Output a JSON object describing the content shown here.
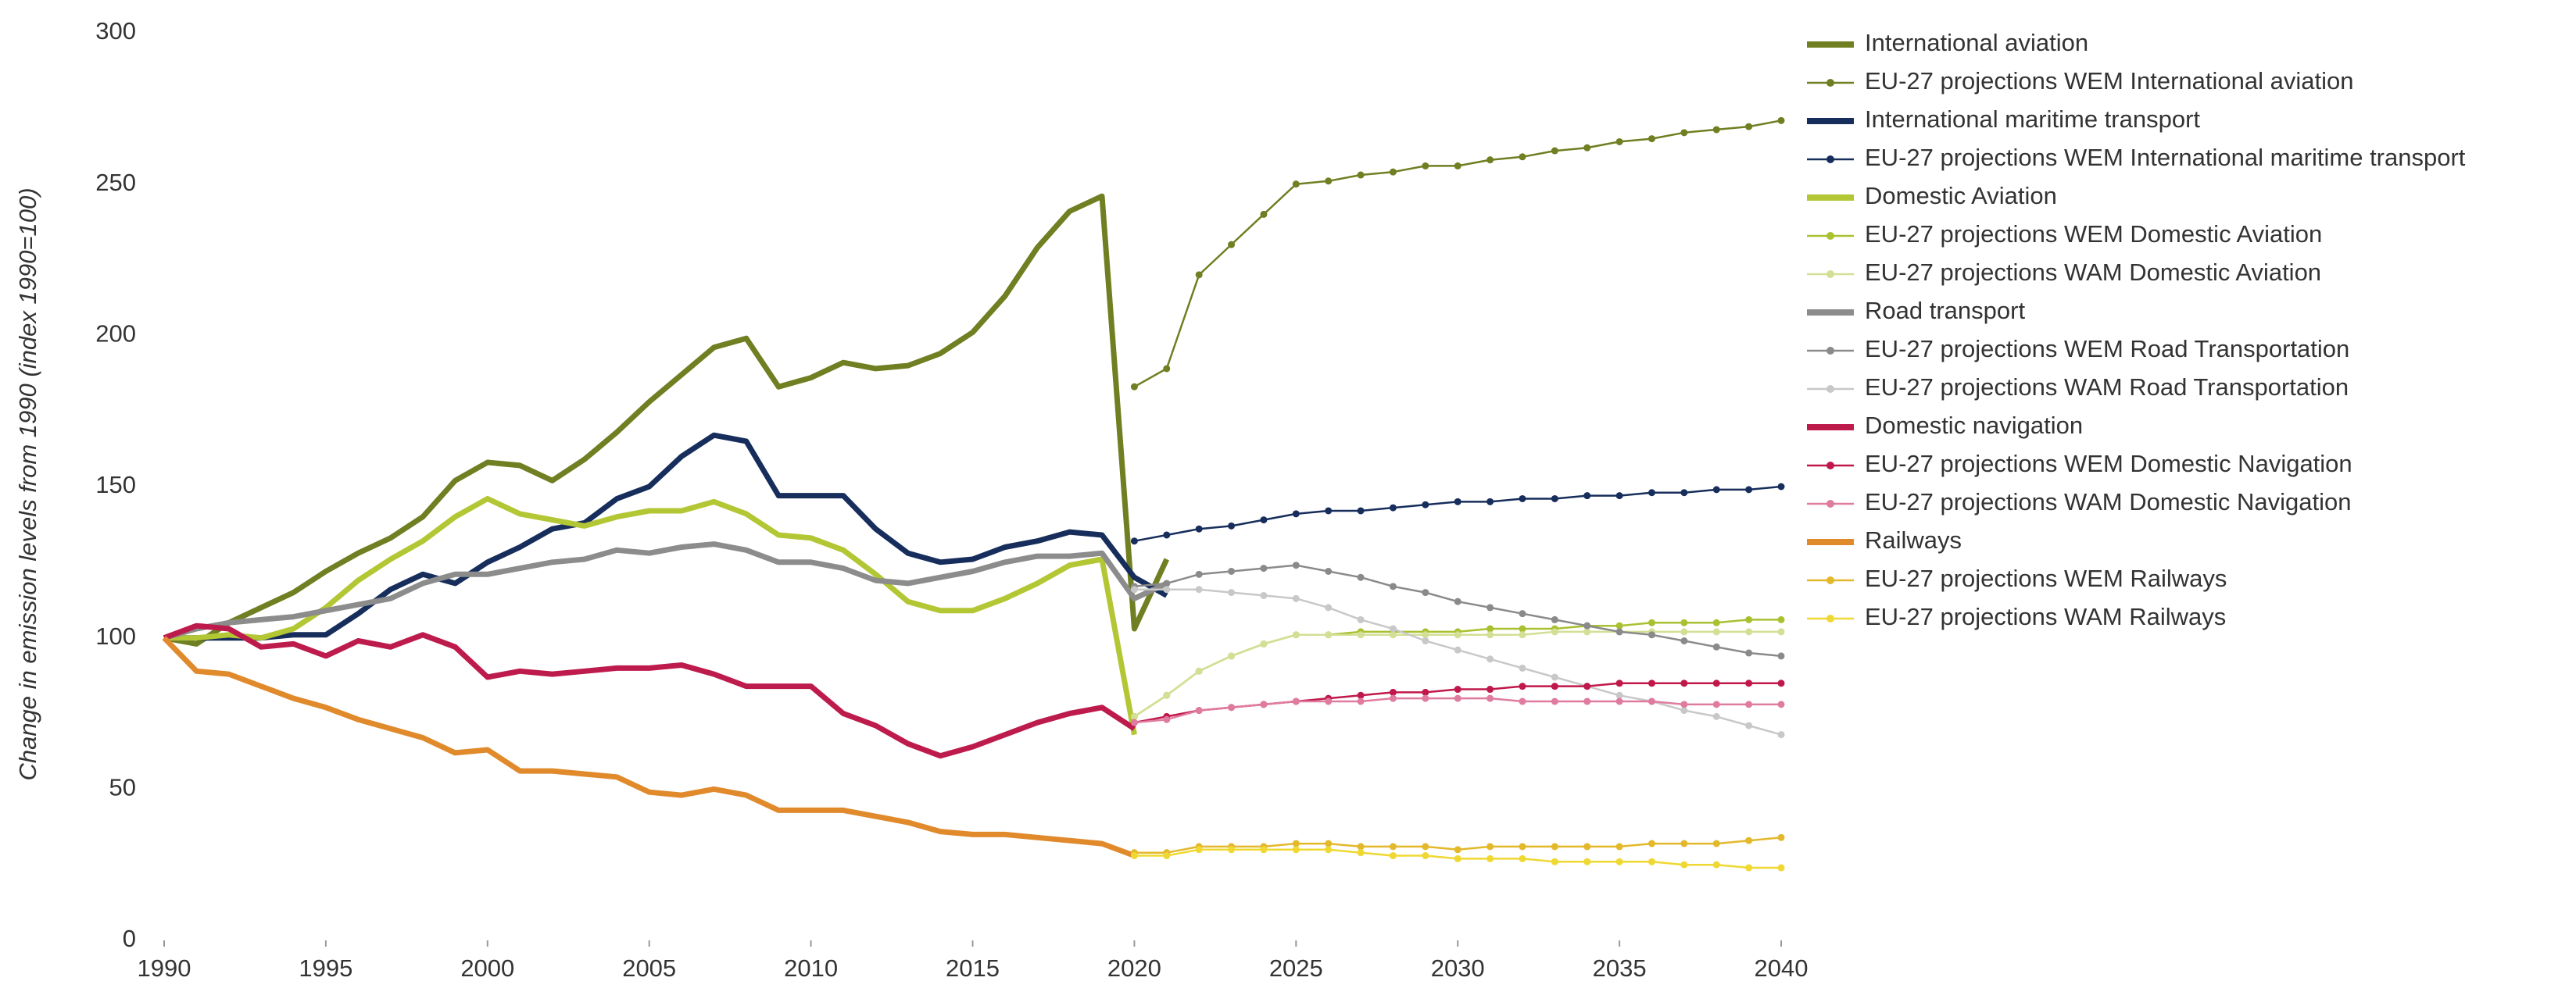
{
  "chart_data": {
    "type": "line",
    "y_label": "Change in emission levels from 1990 (index 1990=100)",
    "x": [
      1990,
      1991,
      1992,
      1993,
      1994,
      1995,
      1996,
      1997,
      1998,
      1999,
      2000,
      2001,
      2002,
      2003,
      2004,
      2005,
      2006,
      2007,
      2008,
      2009,
      2010,
      2011,
      2012,
      2013,
      2014,
      2015,
      2016,
      2017,
      2018,
      2019,
      2020,
      2021,
      2022,
      2023,
      2024,
      2025,
      2026,
      2027,
      2028,
      2029,
      2030,
      2031,
      2032,
      2033,
      2034,
      2035,
      2036,
      2037,
      2038,
      2039,
      2040
    ],
    "xlim": [
      1990,
      2040
    ],
    "xticks": [
      1990,
      1995,
      2000,
      2005,
      2010,
      2015,
      2020,
      2025,
      2030,
      2035,
      2040
    ],
    "ylim": [
      0,
      300
    ],
    "yticks": [
      0,
      50,
      100,
      150,
      200,
      250,
      300
    ],
    "grid": false,
    "legend": "right",
    "series": [
      {
        "name": "International aviation",
        "color": "#6f7f22",
        "style": "thick",
        "values": [
          100,
          98,
          105,
          110,
          115,
          122,
          128,
          133,
          140,
          152,
          158,
          157,
          152,
          159,
          168,
          178,
          187,
          196,
          199,
          183,
          186,
          191,
          189,
          190,
          194,
          201,
          213,
          229,
          241,
          246,
          103,
          126,
          null,
          null,
          null,
          null,
          null,
          null,
          null,
          null,
          null,
          null,
          null,
          null,
          null,
          null,
          null,
          null,
          null,
          null,
          null
        ]
      },
      {
        "name": "EU-27 projections WEM International aviation",
        "color": "#6f7f22",
        "style": "marker",
        "values": [
          null,
          null,
          null,
          null,
          null,
          null,
          null,
          null,
          null,
          null,
          null,
          null,
          null,
          null,
          null,
          null,
          null,
          null,
          null,
          null,
          null,
          null,
          null,
          null,
          null,
          null,
          null,
          null,
          null,
          null,
          183,
          189,
          220,
          230,
          240,
          250,
          251,
          253,
          254,
          256,
          256,
          258,
          259,
          261,
          262,
          264,
          265,
          267,
          268,
          269,
          271
        ]
      },
      {
        "name": "International maritime transport",
        "color": "#172e5c",
        "style": "thick",
        "values": [
          100,
          100,
          100,
          100,
          101,
          101,
          108,
          116,
          121,
          118,
          125,
          130,
          136,
          138,
          146,
          150,
          160,
          167,
          165,
          147,
          147,
          147,
          136,
          128,
          125,
          126,
          130,
          132,
          135,
          134,
          120,
          114,
          null,
          null,
          null,
          null,
          null,
          null,
          null,
          null,
          null,
          null,
          null,
          null,
          null,
          null,
          null,
          null,
          null,
          null,
          null
        ]
      },
      {
        "name": "EU-27 projections WEM International maritime transport",
        "color": "#172e5c",
        "style": "marker",
        "values": [
          null,
          null,
          null,
          null,
          null,
          null,
          null,
          null,
          null,
          null,
          null,
          null,
          null,
          null,
          null,
          null,
          null,
          null,
          null,
          null,
          null,
          null,
          null,
          null,
          null,
          null,
          null,
          null,
          null,
          null,
          132,
          134,
          136,
          137,
          139,
          141,
          142,
          142,
          143,
          144,
          145,
          145,
          146,
          146,
          147,
          147,
          148,
          148,
          149,
          149,
          150
        ]
      },
      {
        "name": "Domestic Aviation",
        "color": "#b3c633",
        "style": "thick",
        "values": [
          100,
          100,
          101,
          100,
          103,
          110,
          119,
          126,
          132,
          140,
          146,
          141,
          139,
          137,
          140,
          142,
          142,
          145,
          141,
          134,
          133,
          129,
          121,
          112,
          109,
          109,
          113,
          118,
          124,
          126,
          68,
          null,
          null,
          null,
          null,
          null,
          null,
          null,
          null,
          null,
          null,
          null,
          null,
          null,
          null,
          null,
          null,
          null,
          null,
          null,
          null
        ]
      },
      {
        "name": "EU-27 projections WEM Domestic Aviation",
        "color": "#a9c130",
        "style": "marker",
        "values": [
          null,
          null,
          null,
          null,
          null,
          null,
          null,
          null,
          null,
          null,
          null,
          null,
          null,
          null,
          null,
          null,
          null,
          null,
          null,
          null,
          null,
          null,
          null,
          null,
          null,
          null,
          null,
          null,
          null,
          null,
          74,
          81,
          89,
          94,
          98,
          101,
          101,
          102,
          102,
          102,
          102,
          103,
          103,
          103,
          104,
          104,
          105,
          105,
          105,
          106,
          106
        ]
      },
      {
        "name": "EU-27 projections WAM Domestic Aviation",
        "color": "#d3df95",
        "style": "marker",
        "values": [
          null,
          null,
          null,
          null,
          null,
          null,
          null,
          null,
          null,
          null,
          null,
          null,
          null,
          null,
          null,
          null,
          null,
          null,
          null,
          null,
          null,
          null,
          null,
          null,
          null,
          null,
          null,
          null,
          null,
          null,
          74,
          81,
          89,
          94,
          98,
          101,
          101,
          101,
          101,
          101,
          101,
          101,
          101,
          102,
          102,
          102,
          102,
          102,
          102,
          102,
          102
        ]
      },
      {
        "name": "Road transport",
        "color": "#8c8c8c",
        "style": "thick",
        "values": [
          100,
          103,
          105,
          106,
          107,
          109,
          111,
          113,
          118,
          121,
          121,
          123,
          125,
          126,
          129,
          128,
          130,
          131,
          129,
          125,
          125,
          123,
          119,
          118,
          120,
          122,
          125,
          127,
          127,
          128,
          113,
          118,
          null,
          null,
          null,
          null,
          null,
          null,
          null,
          null,
          null,
          null,
          null,
          null,
          null,
          null,
          null,
          null,
          null,
          null,
          null
        ]
      },
      {
        "name": "EU-27 projections WEM Road Transportation",
        "color": "#8a8a8a",
        "style": "marker",
        "values": [
          null,
          null,
          null,
          null,
          null,
          null,
          null,
          null,
          null,
          null,
          null,
          null,
          null,
          null,
          null,
          null,
          null,
          null,
          null,
          null,
          null,
          null,
          null,
          null,
          null,
          null,
          null,
          null,
          null,
          null,
          117,
          118,
          121,
          122,
          123,
          124,
          122,
          120,
          117,
          115,
          112,
          110,
          108,
          106,
          104,
          102,
          101,
          99,
          97,
          95,
          94
        ]
      },
      {
        "name": "EU-27 projections WAM Road Transportation",
        "color": "#c8c8c8",
        "style": "marker",
        "values": [
          null,
          null,
          null,
          null,
          null,
          null,
          null,
          null,
          null,
          null,
          null,
          null,
          null,
          null,
          null,
          null,
          null,
          null,
          null,
          null,
          null,
          null,
          null,
          null,
          null,
          null,
          null,
          null,
          null,
          null,
          116,
          116,
          116,
          115,
          114,
          113,
          110,
          106,
          103,
          99,
          96,
          93,
          90,
          87,
          84,
          81,
          79,
          76,
          74,
          71,
          68
        ]
      },
      {
        "name": "Domestic navigation",
        "color": "#be1b4d",
        "style": "thick",
        "values": [
          100,
          104,
          103,
          97,
          98,
          94,
          99,
          97,
          101,
          97,
          87,
          89,
          88,
          89,
          90,
          90,
          91,
          88,
          84,
          84,
          84,
          75,
          71,
          65,
          61,
          64,
          68,
          72,
          75,
          77,
          70,
          null,
          null,
          null,
          null,
          null,
          null,
          null,
          null,
          null,
          null,
          null,
          null,
          null,
          null,
          null,
          null,
          null,
          null,
          null,
          null
        ]
      },
      {
        "name": "EU-27 projections WEM Domestic Navigation",
        "color": "#c0184a",
        "style": "marker",
        "values": [
          null,
          null,
          null,
          null,
          null,
          null,
          null,
          null,
          null,
          null,
          null,
          null,
          null,
          null,
          null,
          null,
          null,
          null,
          null,
          null,
          null,
          null,
          null,
          null,
          null,
          null,
          null,
          null,
          null,
          null,
          72,
          74,
          76,
          77,
          78,
          79,
          80,
          81,
          82,
          82,
          83,
          83,
          84,
          84,
          84,
          85,
          85,
          85,
          85,
          85,
          85
        ]
      },
      {
        "name": "EU-27 projections WAM Domestic Navigation",
        "color": "#e07ba0",
        "style": "marker",
        "values": [
          null,
          null,
          null,
          null,
          null,
          null,
          null,
          null,
          null,
          null,
          null,
          null,
          null,
          null,
          null,
          null,
          null,
          null,
          null,
          null,
          null,
          null,
          null,
          null,
          null,
          null,
          null,
          null,
          null,
          null,
          72,
          73,
          76,
          77,
          78,
          79,
          79,
          79,
          80,
          80,
          80,
          80,
          79,
          79,
          79,
          79,
          79,
          78,
          78,
          78,
          78
        ]
      },
      {
        "name": "Railways",
        "color": "#e08a2c",
        "style": "thick",
        "values": [
          100,
          89,
          88,
          84,
          80,
          77,
          73,
          70,
          67,
          62,
          63,
          56,
          56,
          55,
          54,
          49,
          48,
          50,
          48,
          43,
          43,
          43,
          41,
          39,
          36,
          35,
          35,
          34,
          33,
          32,
          28,
          null,
          null,
          null,
          null,
          null,
          null,
          null,
          null,
          null,
          null,
          null,
          null,
          null,
          null,
          null,
          null,
          null,
          null,
          null,
          null
        ]
      },
      {
        "name": "EU-27 projections WEM Railways",
        "color": "#e3b82b",
        "style": "marker",
        "values": [
          null,
          null,
          null,
          null,
          null,
          null,
          null,
          null,
          null,
          null,
          null,
          null,
          null,
          null,
          null,
          null,
          null,
          null,
          null,
          null,
          null,
          null,
          null,
          null,
          null,
          null,
          null,
          null,
          null,
          null,
          29,
          29,
          31,
          31,
          31,
          32,
          32,
          31,
          31,
          31,
          30,
          31,
          31,
          31,
          31,
          31,
          32,
          32,
          32,
          33,
          34
        ]
      },
      {
        "name": "EU-27 projections WAM Railways",
        "color": "#f0d832",
        "style": "marker",
        "values": [
          null,
          null,
          null,
          null,
          null,
          null,
          null,
          null,
          null,
          null,
          null,
          null,
          null,
          null,
          null,
          null,
          null,
          null,
          null,
          null,
          null,
          null,
          null,
          null,
          null,
          null,
          null,
          null,
          null,
          null,
          28,
          28,
          30,
          30,
          30,
          30,
          30,
          29,
          28,
          28,
          27,
          27,
          27,
          26,
          26,
          26,
          26,
          25,
          25,
          24,
          24
        ]
      }
    ]
  }
}
